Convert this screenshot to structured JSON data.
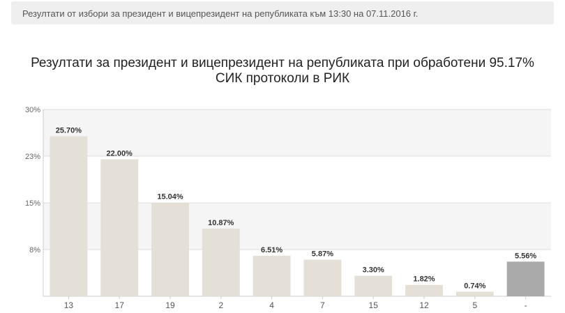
{
  "header": {
    "text": "Резултати от избори за президент и вицепрезидент на републиката към 13:30 на 07.11.2016 г."
  },
  "chart_data": {
    "type": "bar",
    "title_line1": "Резултати за президент и вицепрезидент на републиката при обработени 95.17%",
    "title_line2": "СИК протоколи в РИК",
    "categories": [
      "13",
      "17",
      "19",
      "2",
      "4",
      "7",
      "15",
      "12",
      "5",
      "-"
    ],
    "values": [
      25.7,
      22.0,
      15.04,
      10.87,
      6.51,
      5.87,
      3.3,
      1.82,
      0.74,
      5.56
    ],
    "value_labels": [
      "25.70%",
      "22.00%",
      "15.04%",
      "10.87%",
      "6.51%",
      "5.87%",
      "3.30%",
      "1.82%",
      "0.74%",
      "5.56%"
    ],
    "y_ticks": [
      {
        "value": 7.5,
        "label": "8%"
      },
      {
        "value": 15,
        "label": "15%"
      },
      {
        "value": 22.5,
        "label": "23%"
      },
      {
        "value": 30,
        "label": "30%"
      }
    ],
    "ylim": [
      0,
      30
    ],
    "grid": true,
    "colors": {
      "bar": "#e5e0d7",
      "highlight_bar": "#aaaaaa",
      "band": "#f5f5f5",
      "grid": "#dddddd"
    },
    "highlight_category": "-"
  }
}
